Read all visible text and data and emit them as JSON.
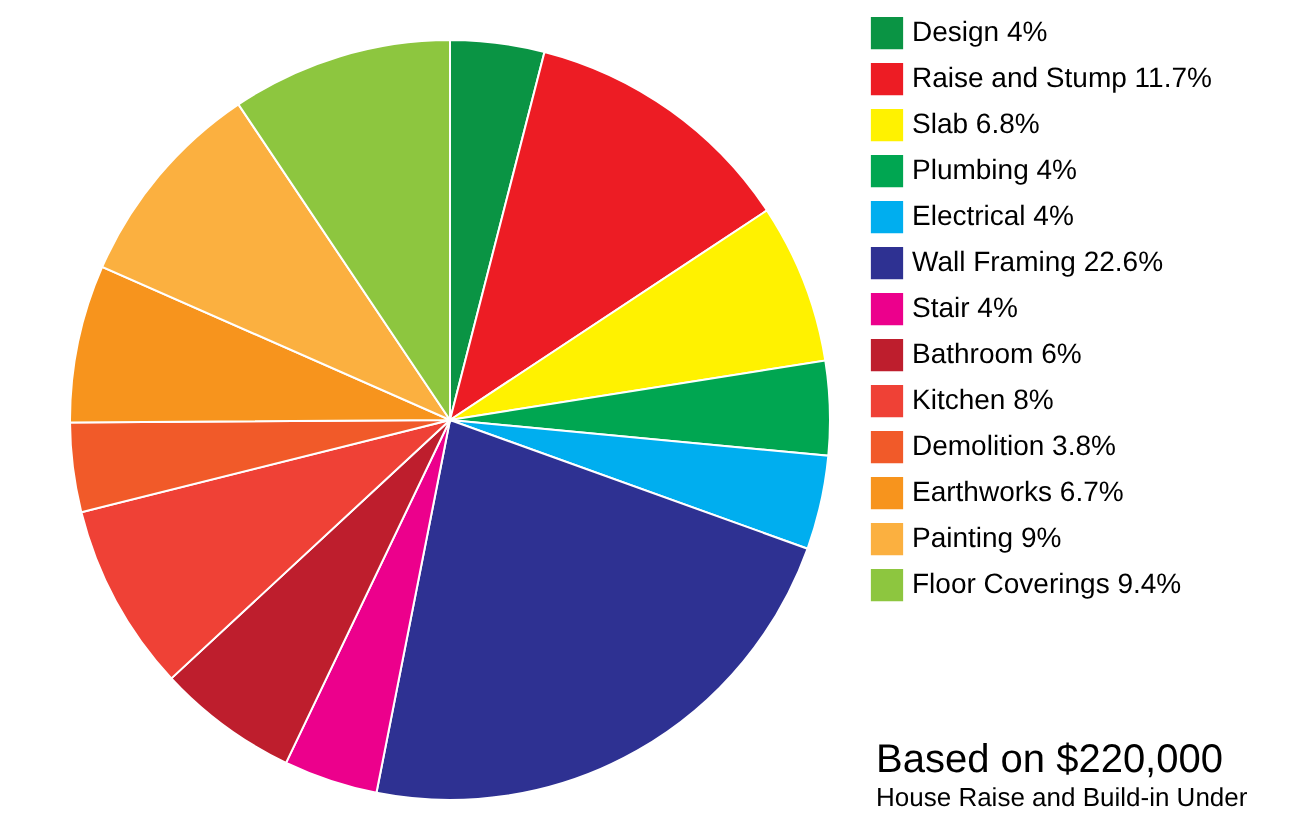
{
  "chart_data": {
    "type": "pie",
    "categories": [
      "Design",
      "Raise and Stump",
      "Slab",
      "Plumbing",
      "Electrical",
      "Wall Framing",
      "Stair",
      "Bathroom",
      "Kitchen",
      "Demolition",
      "Earthworks",
      "Painting",
      "Floor Coverings"
    ],
    "values": [
      4,
      11.7,
      6.8,
      4,
      4,
      22.6,
      4,
      6,
      8,
      3.8,
      6.7,
      9,
      9.4
    ],
    "value_labels": [
      "4%",
      "11.7%",
      "6.8%",
      "4%",
      "4%",
      "22.6%",
      "4%",
      "6%",
      "8%",
      "3.8%",
      "6.7%",
      "9%",
      "9.4%"
    ],
    "colors": [
      "#0a9444",
      "#ed1c24",
      "#fff200",
      "#00a651",
      "#00aeef",
      "#2e3192",
      "#ec008c",
      "#be1e2d",
      "#ef4136",
      "#f15a29",
      "#f7941d",
      "#fbb040",
      "#8dc63f"
    ],
    "legend": "right",
    "annotations": [
      "Based on $220,000",
      "House Raise and Build-in Under"
    ]
  }
}
